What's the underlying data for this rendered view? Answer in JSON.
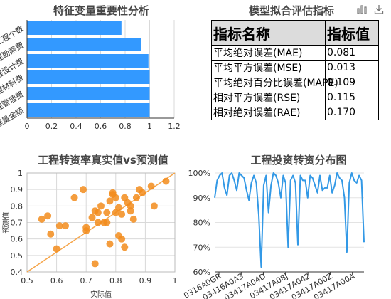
{
  "panels": {
    "importance": {
      "title": "特征变量重要性分析",
      "chart_data": {
        "type": "bar",
        "orientation": "horizontal",
        "categories": [
          "工程量金额",
          "工程管理费",
          "工程材料费",
          "工程设计费",
          "工程勘察费",
          "工程个数"
        ],
        "values": [
          1.0,
          1.0,
          1.0,
          0.99,
          0.93,
          0.77
        ],
        "xlim": [
          0,
          1.2
        ],
        "xticks": [
          0,
          0.2,
          0.4,
          0.6,
          0.8,
          1,
          1.2
        ],
        "color": "#3399ff"
      }
    },
    "metrics": {
      "title": "模型拟合评估指标",
      "headers": [
        "指标名称",
        "指标值"
      ],
      "rows": [
        {
          "name": "平均绝对误差(MAE)",
          "value": "0.081"
        },
        {
          "name": "平均平方误差(MSE)",
          "value": "0.013"
        },
        {
          "name": "平均绝对百分比误差(MAPE)",
          "value": "0.109"
        },
        {
          "name": "相对平方误差(RSE)",
          "value": "0.115"
        },
        {
          "name": "相对绝对误差(RAE)",
          "value": "0.170"
        }
      ],
      "toolbar": {
        "chart_icon": "bar-chart-icon",
        "download_icon": "download-icon"
      }
    },
    "scatter": {
      "title": "工程转资率真实值vs预测值",
      "chart_data": {
        "type": "scatter",
        "xlabel": "实际值",
        "ylabel": "预测值",
        "xlim": [
          0.5,
          1.0
        ],
        "ylim": [
          0.4,
          1.0
        ],
        "xticks": [
          0.5,
          0.6,
          0.7,
          0.8,
          0.9,
          1
        ],
        "yticks": [
          0.4,
          0.5,
          0.6,
          0.7,
          0.8,
          0.9,
          1
        ],
        "point_color": "#f28c1c",
        "line_color": "#f5a54a",
        "reference_line": [
          [
            0.5,
            0.4
          ],
          [
            1.0,
            1.0
          ]
        ],
        "points": [
          [
            0.55,
            0.72
          ],
          [
            0.57,
            0.74
          ],
          [
            0.58,
            0.63
          ],
          [
            0.6,
            0.54
          ],
          [
            0.61,
            0.68
          ],
          [
            0.63,
            0.68
          ],
          [
            0.66,
            0.85
          ],
          [
            0.69,
            0.9
          ],
          [
            0.7,
            0.67
          ],
          [
            0.7,
            0.65
          ],
          [
            0.72,
            0.73
          ],
          [
            0.73,
            0.77
          ],
          [
            0.74,
            0.76
          ],
          [
            0.74,
            0.7
          ],
          [
            0.73,
            0.45
          ],
          [
            0.75,
            0.8
          ],
          [
            0.76,
            0.7
          ],
          [
            0.77,
            0.7
          ],
          [
            0.77,
            0.76
          ],
          [
            0.78,
            0.83
          ],
          [
            0.78,
            0.57
          ],
          [
            0.79,
            0.88
          ],
          [
            0.79,
            0.87
          ],
          [
            0.8,
            0.85
          ],
          [
            0.8,
            0.76
          ],
          [
            0.81,
            0.79
          ],
          [
            0.81,
            0.62
          ],
          [
            0.82,
            0.75
          ],
          [
            0.82,
            0.6
          ],
          [
            0.83,
            0.55
          ],
          [
            0.83,
            0.85
          ],
          [
            0.84,
            0.82
          ],
          [
            0.85,
            0.8
          ],
          [
            0.85,
            0.77
          ],
          [
            0.86,
            0.72
          ],
          [
            0.87,
            0.85
          ],
          [
            0.88,
            0.9
          ],
          [
            0.89,
            0.88
          ],
          [
            0.92,
            0.92
          ],
          [
            0.93,
            0.8
          ],
          [
            0.97,
            0.95
          ]
        ]
      }
    },
    "line": {
      "title": "工程投资转资分布图",
      "chart_data": {
        "type": "line",
        "ylim": [
          0.6,
          1.0
        ],
        "yticks": [
          "60%",
          "70%",
          "80%",
          "90%",
          "100%"
        ],
        "ytick_values": [
          0.6,
          0.7,
          0.8,
          0.9,
          1.0
        ],
        "color": "#3399e6",
        "xtick_labels": [
          "0316A0GR",
          "03416A0A3",
          "03417A04D",
          "03417A08J",
          "03417A042",
          "03417A00Z",
          "03417A00A"
        ],
        "values": [
          0.9,
          0.97,
          0.99,
          1.0,
          0.94,
          0.91,
          0.99,
          1.0,
          0.97,
          0.93,
          1.0,
          0.99,
          0.98,
          0.93,
          0.89,
          0.96,
          0.99,
          0.96,
          0.83,
          0.62,
          0.95,
          0.99,
          0.84,
          0.95,
          1.0,
          0.99,
          0.96,
          0.9,
          0.99,
          0.96,
          0.7,
          0.97,
          0.99,
          0.96,
          0.71,
          0.99,
          0.97,
          0.97,
          0.9,
          0.99,
          0.98,
          0.95,
          0.92,
          0.99,
          0.93,
          0.94,
          0.94,
          0.99,
          0.92,
          0.95,
          1.0,
          0.98,
          0.97,
          0.9,
          0.68,
          0.96,
          1.0,
          0.97,
          0.96,
          0.99,
          0.97,
          0.72
        ]
      }
    }
  }
}
